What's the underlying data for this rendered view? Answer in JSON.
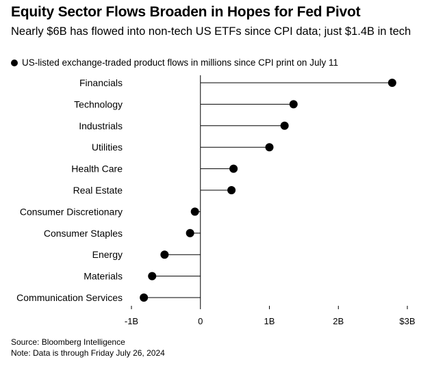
{
  "title": "Equity Sector Flows Broaden in Hopes for Fed Pivot",
  "subtitle": "Nearly $6B has flowed into non-tech US ETFs since CPI data; just $1.4B in tech",
  "legend_label": "US-listed exchange-traded product flows in millions since CPI print on July 11",
  "source": "Source: Bloomberg Intelligence",
  "note": "Note: Data is through Friday July 26, 2024",
  "colors": {
    "marker": "#000000",
    "axis": "#000000",
    "grid": "#cccccc"
  },
  "chart_data": {
    "type": "lollipop",
    "orientation": "horizontal",
    "units": "billions USD",
    "categories": [
      "Financials",
      "Technology",
      "Industrials",
      "Utilities",
      "Health Care",
      "Real Estate",
      "Consumer Discretionary",
      "Consumer Staples",
      "Energy",
      "Materials",
      "Communication Services"
    ],
    "values": [
      2.78,
      1.35,
      1.22,
      1.0,
      0.48,
      0.45,
      -0.08,
      -0.15,
      -0.52,
      -0.7,
      -0.82
    ],
    "xlim": [
      -1,
      3
    ],
    "xticks": [
      -1,
      0,
      1,
      2,
      3
    ],
    "xtick_labels": [
      "-1B",
      "0",
      "1B",
      "2B",
      "$3B"
    ],
    "grid": false,
    "legend_position": "top-left"
  }
}
